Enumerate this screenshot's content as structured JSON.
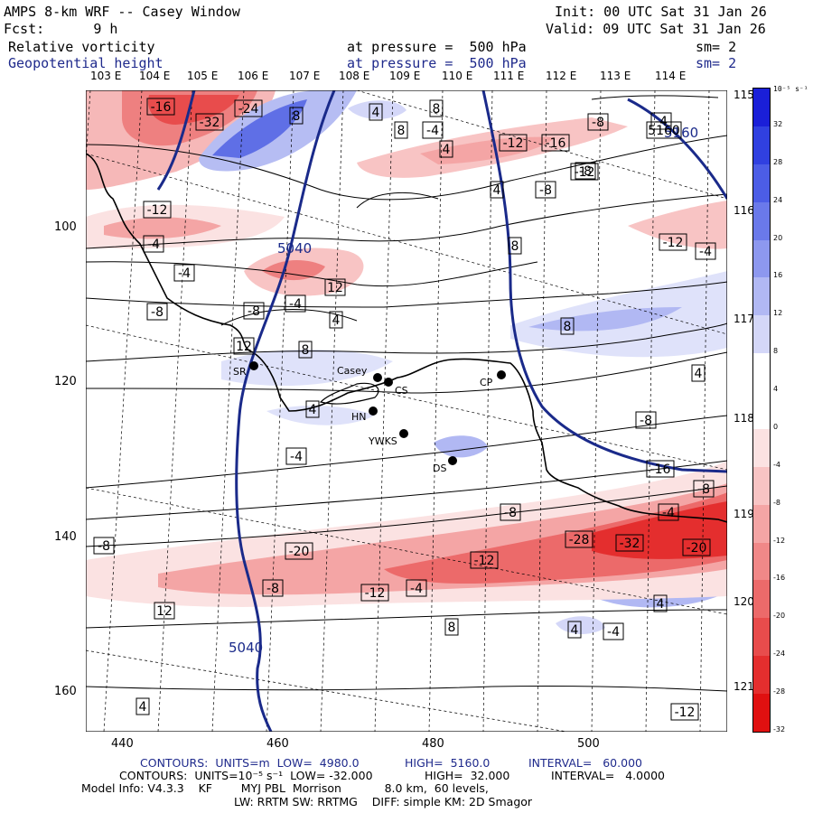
{
  "header": {
    "left_line1": "AMPS 8-km WRF -- Casey Window",
    "left_line2": "Fcst:      9 h",
    "right_line1": "Init: 00 UTC Sat 31 Jan 26",
    "right_line2": "Valid: 09 UTC Sat 31 Jan 26",
    "field1_name": "Relative vorticity",
    "field1_level": "at pressure =  500 hPa",
    "field1_sm": "sm= 2",
    "field2_name": "Geopotential height",
    "field2_level": "at pressure =  500 hPa",
    "field2_sm": "sm= 2"
  },
  "lon_labels_top": [
    "103 E",
    "104 E",
    "105 E",
    "106 E",
    "107 E",
    "108 E",
    "109 E",
    "110 E",
    "111 E",
    "112 E",
    "113 E",
    "114 E"
  ],
  "lat_labels_right": [
    "115 E",
    "116 E",
    "117 E",
    "118 E",
    "119 E",
    "120 E",
    "121 E"
  ],
  "y_ticks": [
    "100",
    "120",
    "140",
    "160"
  ],
  "x_ticks": [
    "440",
    "460",
    "480",
    "500"
  ],
  "stations": [
    {
      "name": "SR"
    },
    {
      "name": "Casey"
    },
    {
      "name": "CS"
    },
    {
      "name": "CP"
    },
    {
      "name": "HN"
    },
    {
      "name": "YWKS"
    },
    {
      "name": "DS"
    }
  ],
  "height_labels": [
    "5160",
    "5040",
    "5040"
  ],
  "contour_labels": [
    "-16",
    "-32",
    "-24",
    "8",
    "4",
    "8",
    "8",
    "-4",
    "4",
    "-12",
    "-16",
    "-8",
    "-4",
    "5160",
    "-12",
    "4",
    "-8",
    "-8",
    "-12",
    "-4",
    "-4",
    "-8",
    "8",
    "-12",
    "-4",
    "-8",
    "-4",
    "12",
    "4",
    "8",
    "12",
    "8",
    "4",
    "-8",
    "4",
    "-4",
    "-16",
    "-8",
    "-4",
    "-8",
    "-20",
    "-28",
    "-32",
    "-20",
    "-12",
    "-8",
    "-12",
    "-4",
    "12",
    "4",
    "8",
    "4",
    "-4",
    "4",
    "-12",
    "-8"
  ],
  "colorbar": {
    "unit": "10⁻⁵ s⁻¹",
    "labels": [
      "32",
      "28",
      "24",
      "20",
      "16",
      "12",
      "8",
      "4",
      "0",
      "-4",
      "-8",
      "-12",
      "-16",
      "-20",
      "-24",
      "-28",
      "-32"
    ],
    "colors": [
      "#1a1fd8",
      "#3040e0",
      "#4c5de6",
      "#6a79ea",
      "#8d98ef",
      "#b1b8f3",
      "#d4d7f8",
      "#ffffff",
      "#ffffff",
      "#fbe2e2",
      "#f8c4c4",
      "#f4a5a5",
      "#f08888",
      "#ec6a6a",
      "#e84c4c",
      "#e42e2e",
      "#e01010"
    ]
  },
  "footer": {
    "line1_a": "CONTOURS:  UNITS=m  LOW=  4980.0",
    "line1_b": "HIGH=  5160.0",
    "line1_c": "INTERVAL=   60.000",
    "line2_a": "CONTOURS:  UNITS=10⁻⁵ s⁻¹  LOW= -32.000",
    "line2_b": "HIGH=  32.000",
    "line2_c": "INTERVAL=   4.0000",
    "line3": "Model Info: V4.3.3    KF        MYJ PBL  Morrison            8.0 km,  60 levels,",
    "line4": "LW: RRTM SW: RRTMG    DIFF: simple KM: 2D Smagor"
  }
}
